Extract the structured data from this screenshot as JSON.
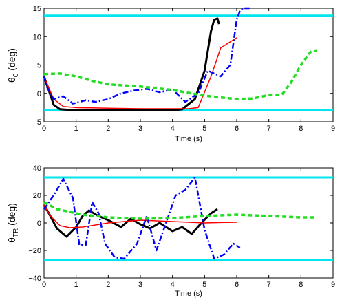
{
  "chart_data": [
    {
      "type": "line",
      "xlabel": "Time (s)",
      "ylabel_main": "θ",
      "ylabel_sub": "0",
      "ylabel_unit": " (deg)",
      "xlim": [
        0,
        9
      ],
      "ylim": [
        -5,
        15
      ],
      "xticks": [
        0,
        1,
        2,
        3,
        4,
        5,
        6,
        7,
        8,
        9
      ],
      "yticks": [
        -5,
        0,
        5,
        10,
        15
      ],
      "grid": false,
      "legend": "none",
      "bounds": [
        13.7,
        -2.9
      ],
      "bound_color": "#00e5ee",
      "series": [
        {
          "color": "#000000",
          "style": "solid-thick",
          "x": [
            0,
            0.3,
            0.5,
            1,
            2,
            3,
            4,
            4.3,
            4.7,
            5,
            5.2,
            5.3,
            5.4,
            5.45
          ],
          "y": [
            3,
            -2,
            -2.8,
            -3,
            -3,
            -3,
            -3,
            -2.8,
            -1,
            4,
            11,
            13,
            13.2,
            12.2
          ]
        },
        {
          "color": "#ff0000",
          "style": "solid",
          "x": [
            0,
            0.3,
            0.6,
            1,
            2,
            3,
            4,
            4.5,
            4.8,
            5.2,
            5.5,
            6
          ],
          "y": [
            3,
            -1,
            -2.3,
            -2.5,
            -2.6,
            -2.7,
            -2.7,
            -2.7,
            -2.5,
            3,
            8,
            9.8
          ]
        },
        {
          "color": "#0000ff",
          "style": "dashdot",
          "x": [
            0,
            0.1,
            0.3,
            0.6,
            0.9,
            1.3,
            1.6,
            2,
            2.4,
            2.8,
            3.2,
            3.6,
            4,
            4.4,
            4.8,
            5.1,
            5.5,
            5.8,
            6,
            6.1,
            6.2,
            6.3,
            6.4
          ],
          "y": [
            3,
            1,
            -1,
            -0.5,
            -1.8,
            -1.2,
            -1.5,
            -1,
            0,
            0.5,
            0.8,
            0.2,
            0.7,
            -1.5,
            0,
            4,
            3,
            5,
            13,
            14.5,
            15,
            15,
            15
          ]
        },
        {
          "color": "#22dd22",
          "style": "dashed-thick",
          "x": [
            0,
            0.5,
            1,
            1.5,
            2,
            3,
            4,
            5,
            6,
            6.5,
            7,
            7.4,
            7.7,
            8,
            8.3,
            8.5
          ],
          "y": [
            3.4,
            3.5,
            3,
            2.2,
            1.6,
            1.2,
            0.6,
            -0.4,
            -1,
            -0.9,
            -0.3,
            -0.3,
            2,
            5,
            7.3,
            7.6
          ]
        }
      ]
    },
    {
      "type": "line",
      "xlabel": "Time (s)",
      "ylabel_main": "θ",
      "ylabel_sub": "TR",
      "ylabel_unit": " (deg)",
      "xlim": [
        0,
        9
      ],
      "ylim": [
        -40,
        40
      ],
      "xticks": [
        0,
        1,
        2,
        3,
        4,
        5,
        6,
        7,
        8,
        9
      ],
      "yticks": [
        -40,
        -20,
        0,
        20,
        40
      ],
      "grid": false,
      "legend": "none",
      "bounds": [
        33,
        -27
      ],
      "bound_color": "#00e5ee",
      "series": [
        {
          "color": "#000000",
          "style": "solid-thick",
          "x": [
            0,
            0.15,
            0.4,
            0.7,
            1,
            1.2,
            1.4,
            1.7,
            2,
            2.4,
            2.7,
            3,
            3.3,
            3.6,
            4,
            4.3,
            4.6,
            4.9,
            5.2,
            5.4
          ],
          "y": [
            13,
            7,
            -4,
            -10,
            -3,
            5,
            9,
            5,
            2,
            -3,
            3,
            -1,
            -4,
            0,
            -6,
            -3,
            -8,
            0,
            7,
            10
          ]
        },
        {
          "color": "#ff0000",
          "style": "solid",
          "x": [
            0,
            0.2,
            0.5,
            0.8,
            1.2,
            2,
            3,
            4,
            5,
            5.5,
            6
          ],
          "y": [
            13,
            5,
            -2,
            -3.5,
            -3,
            0,
            2,
            1,
            0,
            0.3,
            0.5
          ]
        },
        {
          "color": "#0000ff",
          "style": "dashdot",
          "x": [
            0,
            0.3,
            0.6,
            0.9,
            1.1,
            1.3,
            1.5,
            1.7,
            1.9,
            2.2,
            2.5,
            2.9,
            3.2,
            3.5,
            3.8,
            4.1,
            4.4,
            4.7,
            5,
            5.3,
            5.6,
            5.9,
            6.1
          ],
          "y": [
            10,
            20,
            32,
            18,
            -16,
            -16,
            15,
            7,
            -15,
            -25,
            -26,
            -15,
            5,
            -20,
            0,
            20,
            24,
            33,
            -5,
            -26,
            -23,
            -15,
            -18
          ]
        },
        {
          "color": "#22dd22",
          "style": "dashed-thick",
          "x": [
            0,
            0.4,
            0.8,
            1.2,
            1.6,
            2,
            3,
            4,
            5,
            6,
            7,
            8,
            8.5
          ],
          "y": [
            15,
            10,
            8,
            6,
            5,
            4,
            3,
            3.5,
            5,
            6,
            5,
            4,
            4
          ]
        }
      ]
    }
  ]
}
